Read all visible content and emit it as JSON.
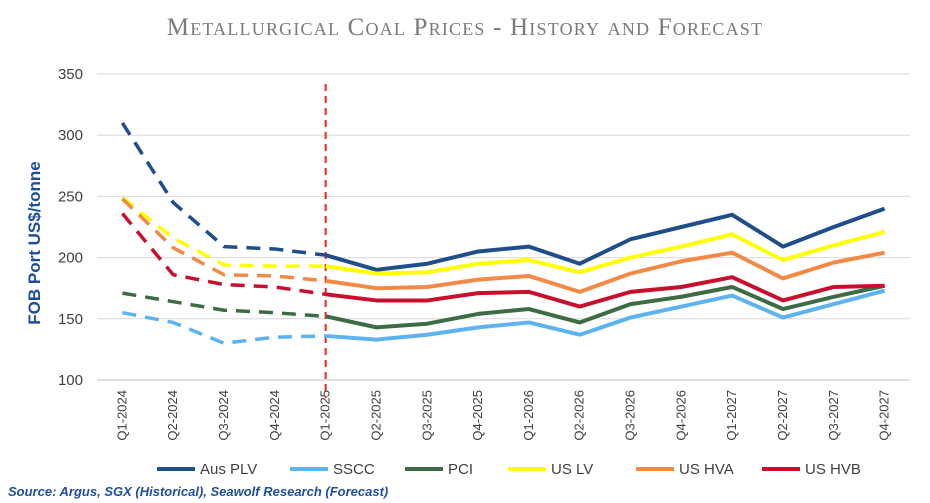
{
  "chart_data": {
    "type": "line",
    "title": "Metallurgical Coal Prices - History and Forecast",
    "ylabel": "FOB Port US$/tonne",
    "xlabel": "",
    "ylim": [
      100,
      350
    ],
    "yticks": [
      100,
      150,
      200,
      250,
      300,
      350
    ],
    "grid": true,
    "legend_position": "bottom",
    "forecast_marker": "Q1-2025",
    "categories": [
      "Q1-2024",
      "Q2-2024",
      "Q3-2024",
      "Q4-2024",
      "Q1-2025",
      "Q2-2025",
      "Q3-2025",
      "Q4-2025",
      "Q1-2026",
      "Q2-2026",
      "Q3-2026",
      "Q4-2026",
      "Q1-2027",
      "Q2-2027",
      "Q3-2027",
      "Q4-2027"
    ],
    "series": [
      {
        "name": "Aus PLV",
        "color": "#1f4e8a",
        "values": [
          310,
          245,
          209,
          207,
          202,
          190,
          195,
          205,
          209,
          195,
          215,
          225,
          235,
          209,
          225,
          240
        ]
      },
      {
        "name": "SSCC",
        "color": "#5db3f0",
        "values": [
          155,
          147,
          130,
          135,
          136,
          133,
          137,
          143,
          147,
          137,
          151,
          160,
          169,
          151,
          162,
          173
        ]
      },
      {
        "name": "PCI",
        "color": "#3d6b44",
        "values": [
          171,
          164,
          157,
          155,
          152,
          143,
          146,
          154,
          158,
          147,
          162,
          168,
          176,
          158,
          168,
          177
        ]
      },
      {
        "name": "US LV",
        "color": "#ffff00",
        "values": [
          249,
          216,
          194,
          193,
          193,
          187,
          188,
          195,
          198,
          188,
          200,
          209,
          219,
          198,
          210,
          221
        ]
      },
      {
        "name": "US HVA",
        "color": "#f28a46",
        "values": [
          248,
          208,
          186,
          185,
          181,
          175,
          176,
          182,
          185,
          172,
          187,
          197,
          204,
          183,
          196,
          204
        ]
      },
      {
        "name": "US HVB",
        "color": "#c8102e",
        "values": [
          236,
          186,
          178,
          176,
          170,
          165,
          165,
          171,
          172,
          160,
          172,
          176,
          184,
          165,
          176,
          177
        ]
      }
    ]
  },
  "source_text": "Source: Argus, SGX (Historical), Seawolf Research (Forecast)"
}
